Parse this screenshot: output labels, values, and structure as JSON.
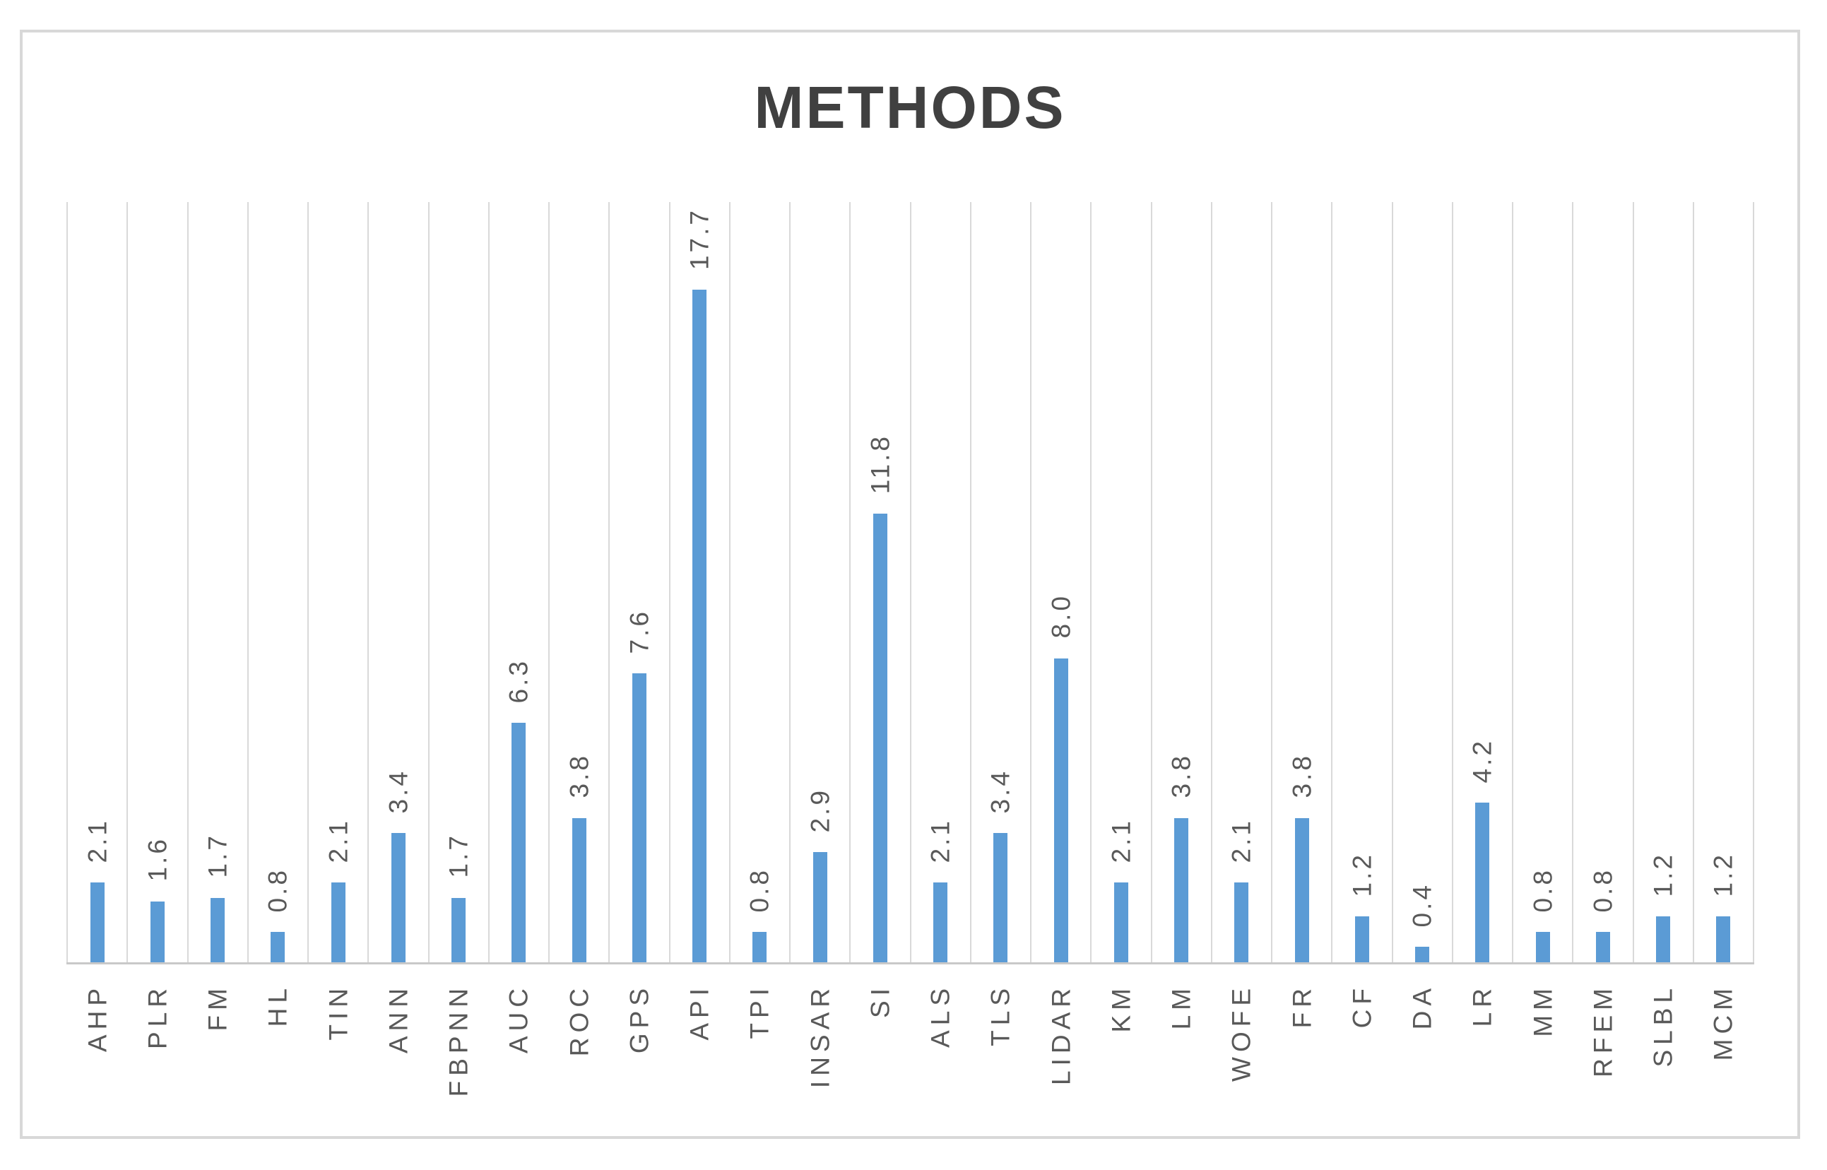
{
  "figure": {
    "background": "#FFFFFF",
    "border_color": "#D8D8D8",
    "title_color": "#404040",
    "label_color": "#595959",
    "gridline_color": "#D9D9D9",
    "axis_line_color": "#C9C9C9"
  },
  "chart_data": {
    "type": "bar",
    "title": "METHODS",
    "orientation": "vertical",
    "categories": [
      "AHP",
      "PLR",
      "FM",
      "HL",
      "TIN",
      "ANN",
      "FBPNN",
      "AUC",
      "ROC",
      "GPS",
      "API",
      "TPI",
      "INSAR",
      "SI",
      "ALS",
      "TLS",
      "LIDAR",
      "KM",
      "LM",
      "WOFE",
      "FR",
      "CF",
      "DA",
      "LR",
      "MM",
      "RFEM",
      "SLBL",
      "MCM"
    ],
    "values": [
      2.1,
      1.6,
      1.7,
      0.8,
      2.1,
      3.4,
      1.7,
      6.3,
      3.8,
      7.6,
      17.7,
      0.8,
      2.9,
      11.8,
      2.1,
      3.4,
      8.0,
      2.1,
      3.8,
      2.1,
      3.8,
      1.2,
      0.4,
      4.2,
      0.8,
      0.8,
      1.2,
      1.2
    ],
    "value_labels": [
      "2.1",
      "1.6",
      "1.7",
      "0.8",
      "2.1",
      "3.4",
      "1.7",
      "6.3",
      "3.8",
      "7.6",
      "17.7",
      "0.8",
      "2.9",
      "11.8",
      "2.1",
      "3.4",
      "8.0",
      "2.1",
      "3.8",
      "2.1",
      "3.8",
      "1.2",
      "0.4",
      "4.2",
      "0.8",
      "0.8",
      "1.2",
      "1.2"
    ],
    "bar_color": "#5B9BD5",
    "xlabel": "",
    "ylabel": "",
    "ylim": [
      0,
      20
    ],
    "y_axis_tick_labels_visible": false,
    "gridlines": "vertical-category-boundaries",
    "legend": "none",
    "data_label_rotation_degrees": 90,
    "category_label_rotation_degrees": 90
  }
}
